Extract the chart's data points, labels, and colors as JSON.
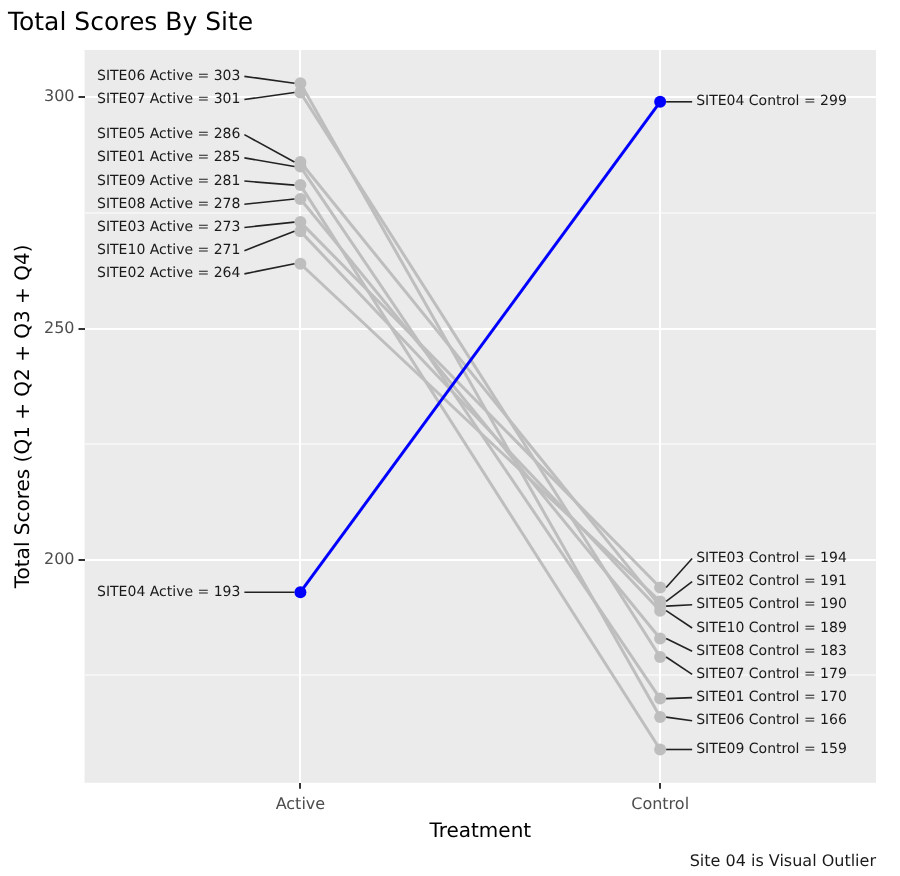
{
  "chart_data": {
    "type": "line",
    "title": "Total Scores By Site",
    "xlabel": "Treatment",
    "ylabel": "Total Scores (Q1 + Q2 + Q3 + Q4)",
    "categories": [
      "Active",
      "Control"
    ],
    "ylim": [
      151.8,
      310.2
    ],
    "yticks": [
      {
        "value": 175,
        "label": null
      },
      200,
      {
        "value": 225,
        "label": null
      },
      250,
      {
        "value": 275,
        "label": null
      },
      300
    ],
    "grid": true,
    "legend": false,
    "marker": "circle",
    "line_style": "solid",
    "series": [
      {
        "color": "#bebebe",
        "values": [
          285,
          170
        ],
        "value_labels": [
          "SITE01 Active = 285",
          "SITE01 Control = 170"
        ]
      },
      {
        "color": "#bebebe",
        "values": [
          264,
          191
        ],
        "value_labels": [
          "SITE02 Active = 264",
          "SITE02 Control = 191"
        ]
      },
      {
        "color": "#bebebe",
        "values": [
          273,
          194
        ],
        "value_labels": [
          "SITE03 Active = 273",
          "SITE03 Control = 194"
        ]
      },
      {
        "color": "#bebebe",
        "values": [
          286,
          190
        ],
        "value_labels": [
          "SITE05 Active = 286",
          "SITE05 Control = 190"
        ]
      },
      {
        "color": "#bebebe",
        "values": [
          303,
          166
        ],
        "value_labels": [
          "SITE06 Active = 303",
          "SITE06 Control = 166"
        ]
      },
      {
        "color": "#bebebe",
        "values": [
          301,
          179
        ],
        "value_labels": [
          "SITE07 Active = 301",
          "SITE07 Control = 179"
        ]
      },
      {
        "color": "#bebebe",
        "values": [
          278,
          183
        ],
        "value_labels": [
          "SITE08 Active = 278",
          "SITE08 Control = 183"
        ]
      },
      {
        "color": "#bebebe",
        "values": [
          281,
          159
        ],
        "value_labels": [
          "SITE09 Active = 281",
          "SITE09 Control = 159"
        ]
      },
      {
        "color": "#bebebe",
        "values": [
          271,
          189
        ],
        "value_labels": [
          "SITE10 Active = 271",
          "SITE10 Control = 189"
        ]
      },
      {
        "color": "#0000ff",
        "values": [
          193,
          299
        ],
        "value_labels": [
          "SITE04 Active = 193",
          "SITE04 Control = 299"
        ]
      }
    ],
    "annotations": [
      "Site 04 is Visual Outlier"
    ]
  }
}
